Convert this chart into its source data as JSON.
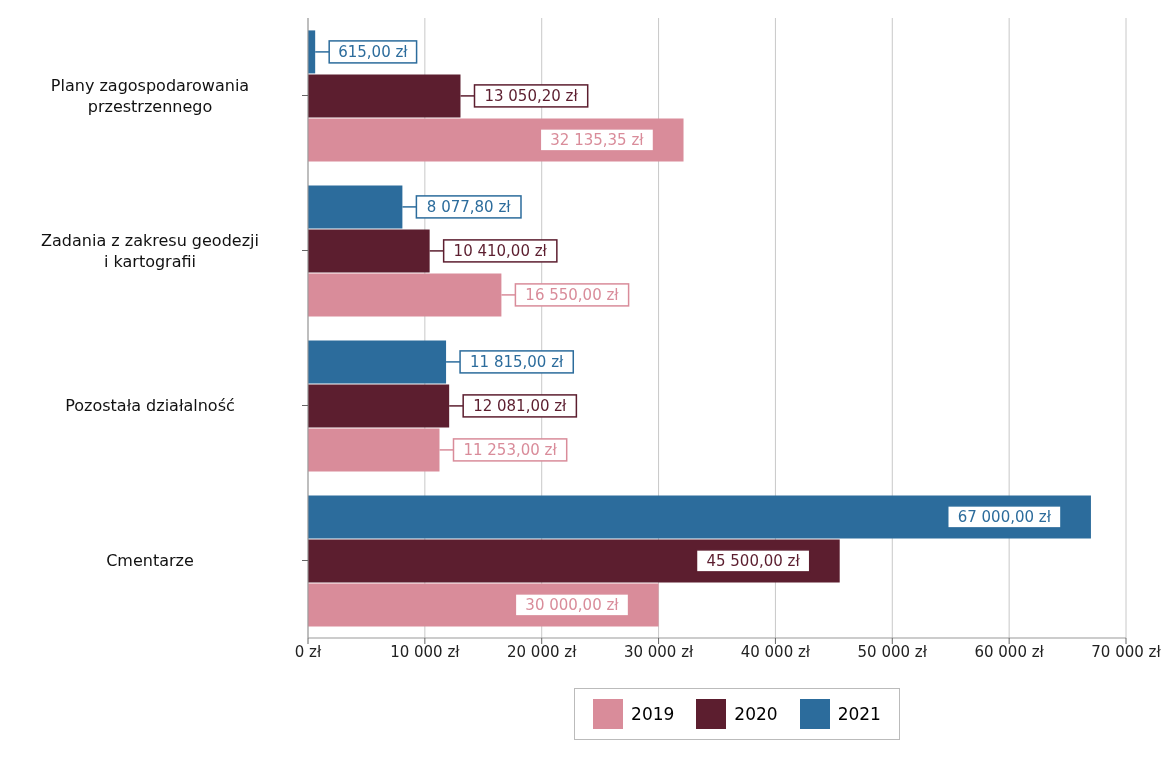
{
  "chart_data": {
    "type": "bar",
    "orientation": "horizontal",
    "categories": [
      "Plany zagospodarowania przestrzennego",
      "Zadania z zakresu geodezji i kartografii",
      "Pozostała działalność",
      "Cmentarze"
    ],
    "series": [
      {
        "name": "2019",
        "color": "#d98c9a",
        "values": [
          32135.35,
          16550,
          11253,
          30000
        ],
        "value_labels": [
          "32 135,35 zł",
          "16 550,00 zł",
          "11 253,00 zł",
          "30 000,00 zł"
        ]
      },
      {
        "name": "2020",
        "color": "#5c1e2f",
        "values": [
          13050.2,
          10410,
          12081,
          45500
        ],
        "value_labels": [
          "13 050,20 zł",
          "10 410,00 zł",
          "12 081,00 zł",
          "45 500,00 zł"
        ]
      },
      {
        "name": "2021",
        "color": "#2c6c9c",
        "values": [
          615,
          8077.8,
          11815,
          67000
        ],
        "value_labels": [
          "615,00 zł",
          "8 077,80 zł",
          "11 815,00 zł",
          "67 000,00 zł"
        ]
      }
    ],
    "xlim": [
      0,
      70000
    ],
    "xticks": [
      {
        "value": 0,
        "label": "0 zł"
      },
      {
        "value": 10000,
        "label": "10 000 zł"
      },
      {
        "value": 20000,
        "label": "20 000 zł"
      },
      {
        "value": 30000,
        "label": "30 000 zł"
      },
      {
        "value": 40000,
        "label": "40 000 zł"
      },
      {
        "value": 50000,
        "label": "50 000 zł"
      },
      {
        "value": 60000,
        "label": "60 000 zł"
      },
      {
        "value": 70000,
        "label": "70 000 zł"
      }
    ],
    "grid": "x",
    "legend": "bottom"
  }
}
